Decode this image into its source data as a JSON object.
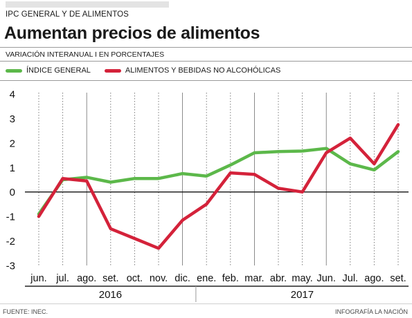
{
  "kicker": "IPC GENERAL Y DE ALIMENTOS",
  "title": "Aumentan precios  de alimentos",
  "subtitle": "VARIACIÓN INTERANUAL  I  EN PORCENTAJES",
  "footer": {
    "source": "FUENTE: INEC.",
    "credit": "INFOGRAFÍA LA NACIÓN"
  },
  "colors": {
    "general": "#5cb84a",
    "alimentos": "#d4223a",
    "grid": "#6e6e6e",
    "zero": "#111111"
  },
  "chart_data": {
    "type": "line",
    "title": "Aumentan precios  de alimentos",
    "subtitle": "VARIACIÓN INTERANUAL  I  EN PORCENTAJES",
    "categories": [
      "jun.",
      "jul.",
      "ago.",
      "set.",
      "oct.",
      "nov.",
      "dic.",
      "ene.",
      "feb.",
      "mar.",
      "abr.",
      "may.",
      "Jun.",
      "Jul.",
      "ago.",
      "set."
    ],
    "years": [
      {
        "label": "2016",
        "start": 0,
        "end": 6
      },
      {
        "label": "2017",
        "start": 7,
        "end": 15
      }
    ],
    "yticks": [
      4,
      3,
      2,
      1,
      0,
      -1,
      -2,
      -3
    ],
    "ytick_labels": [
      "4",
      "3",
      "2",
      "1",
      "0",
      "-1",
      "-2",
      "-3"
    ],
    "ylim": [
      -3,
      4
    ],
    "series": [
      {
        "name": "ÍNDICE GENERAL",
        "color": "#5cb84a",
        "values": [
          -0.9,
          0.5,
          0.6,
          0.4,
          0.55,
          0.55,
          0.75,
          0.65,
          1.1,
          1.6,
          1.65,
          1.67,
          1.78,
          1.15,
          0.9,
          1.65
        ]
      },
      {
        "name": "ALIMENTOS Y BEBIDAS NO ALCOHÓLICAS",
        "color": "#d4223a",
        "values": [
          -1.0,
          0.55,
          0.45,
          -1.5,
          -1.9,
          -2.3,
          -1.15,
          -0.5,
          0.78,
          0.72,
          0.15,
          0.0,
          1.6,
          2.2,
          1.15,
          2.75
        ]
      }
    ],
    "grid": "vertical dotted, solid at quarter months",
    "legend_position": "top-left"
  }
}
